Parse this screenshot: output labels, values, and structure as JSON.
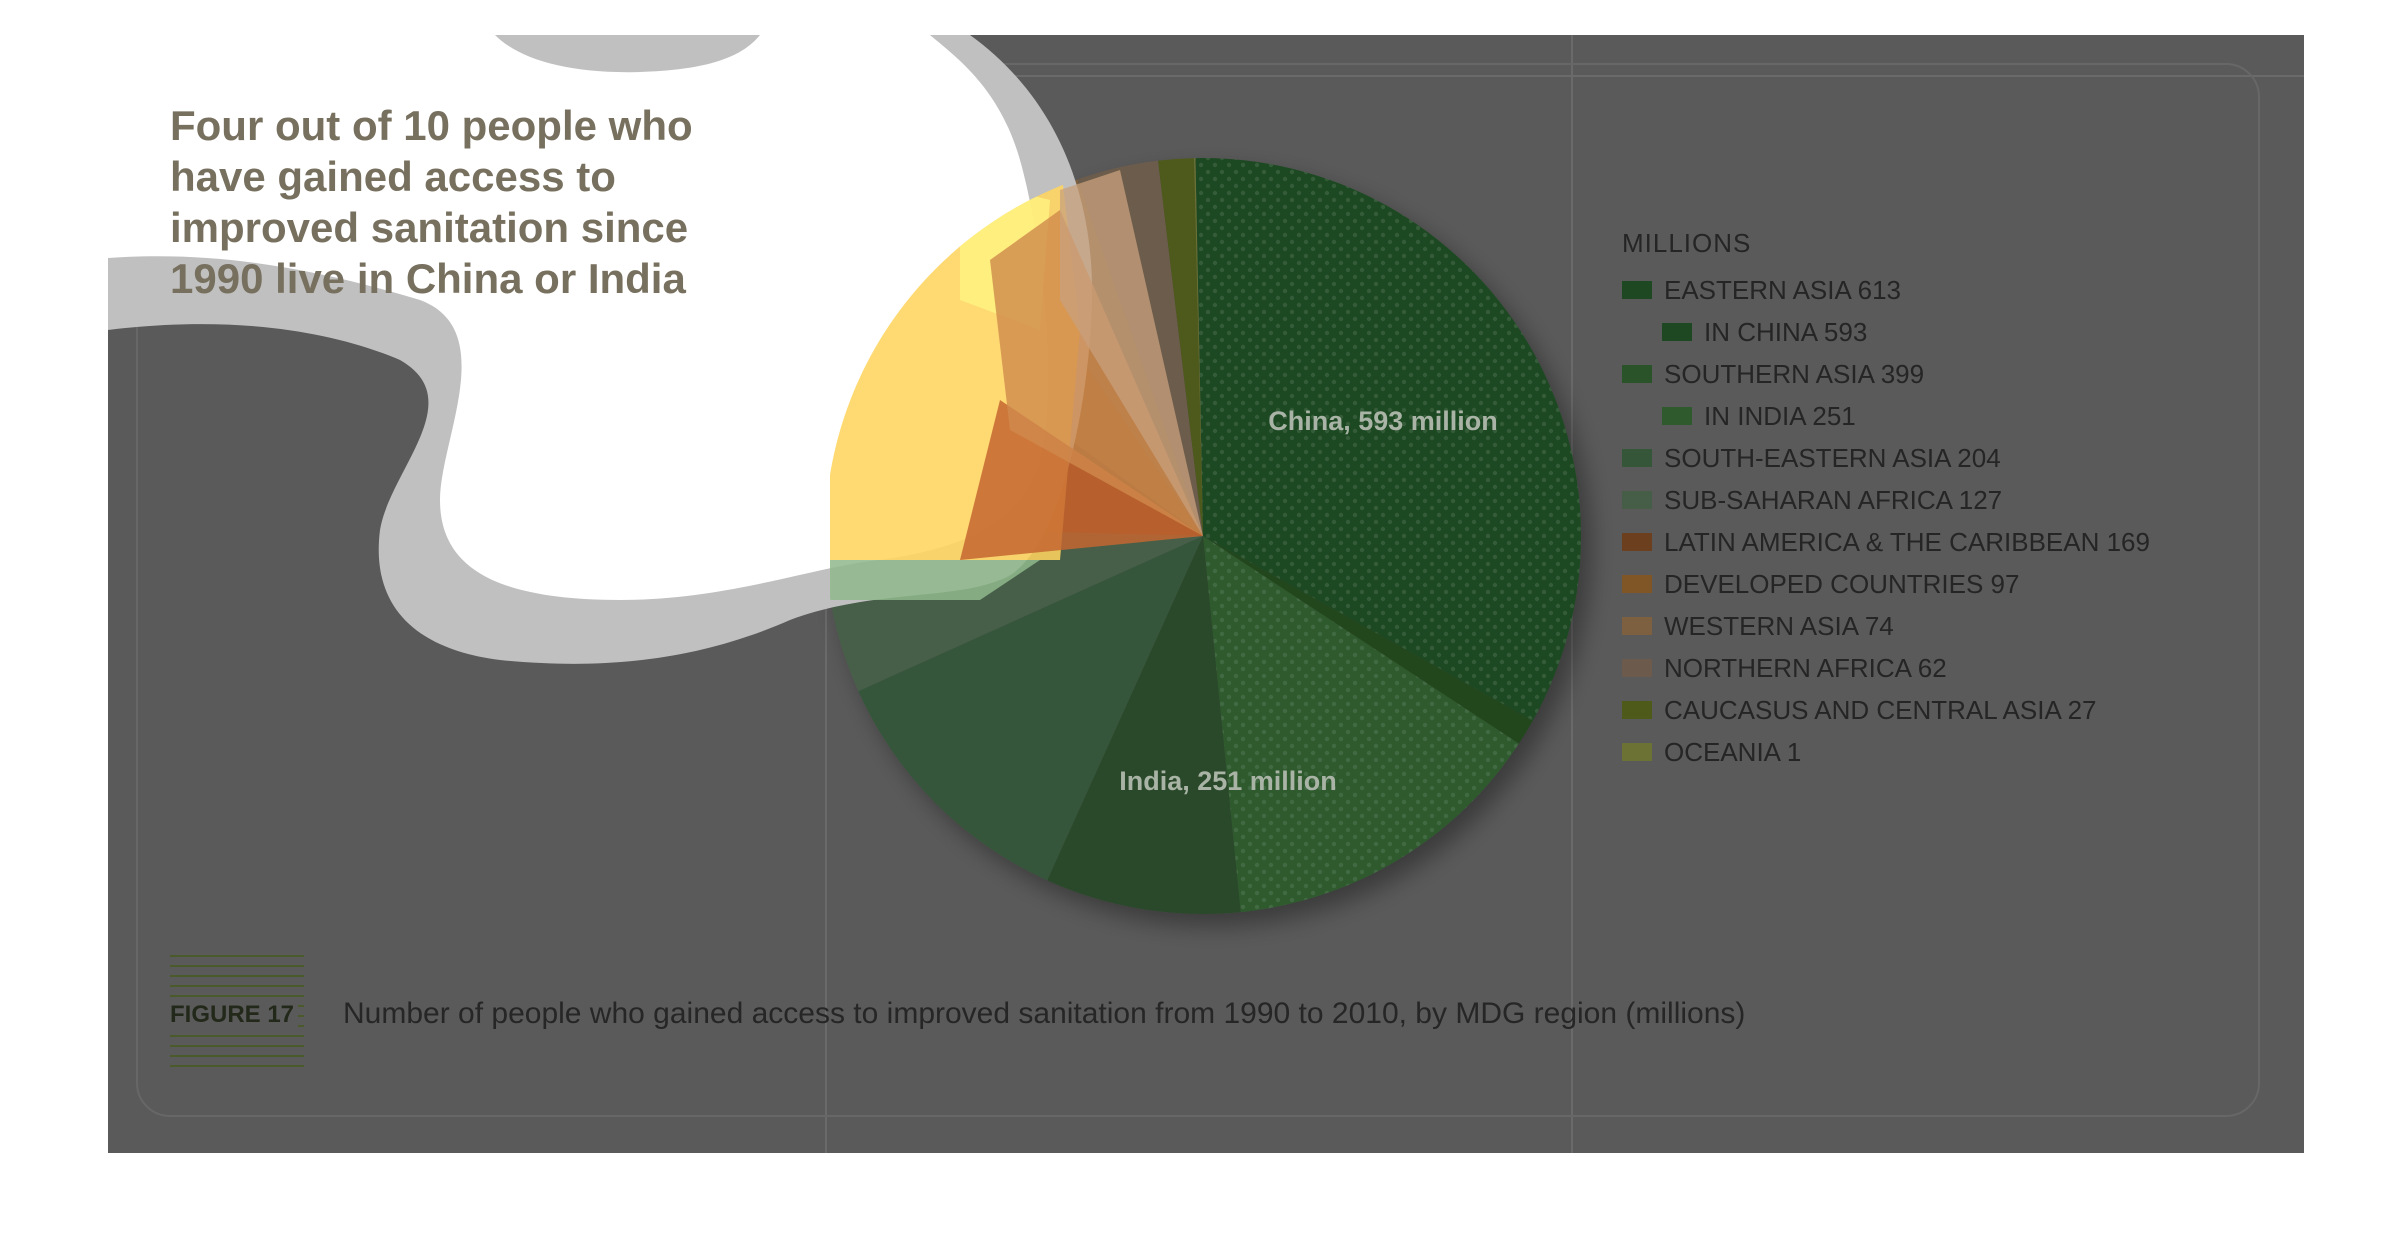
{
  "headline": "Four out of 10 people who\nhave gained access to\nimproved sanitation since\n1990 live in China or India",
  "figure": {
    "label": "FIGURE 17",
    "caption": "Number of people who gained access to improved sanitation from 1990 to 2010, by MDG region (millions)"
  },
  "colors": {
    "background": "#5a5a5a",
    "highlight_blob": "#ffffff",
    "highlight_blob_outline": "#c0c0c0"
  },
  "chart_data": {
    "type": "pie",
    "legend_title": "MILLIONS",
    "legend": [
      {
        "label": "EASTERN ASIA 613",
        "color": "#1e4822",
        "indent": false
      },
      {
        "label": "IN CHINA 593",
        "color": "#1e4822",
        "indent": true
      },
      {
        "label": "SOUTHERN ASIA 399",
        "color": "#2a532a",
        "indent": false
      },
      {
        "label": "IN INDIA 251",
        "color": "#2e5a2e",
        "indent": true
      },
      {
        "label": "SOUTH-EASTERN ASIA 204",
        "color": "#36563a",
        "indent": false
      },
      {
        "label": "SUB-SAHARAN AFRICA 127",
        "color": "#465e48",
        "indent": false
      },
      {
        "label": "LATIN AMERICA & THE CARIBBEAN 169",
        "color": "#6c3f1f",
        "indent": false
      },
      {
        "label": "DEVELOPED COUNTRIES 97",
        "color": "#805626",
        "indent": false
      },
      {
        "label": "WESTERN ASIA 74",
        "color": "#7d6040",
        "indent": false
      },
      {
        "label": "NORTHERN AFRICA 62",
        "color": "#6c5b4c",
        "indent": false
      },
      {
        "label": "CAUCASUS AND CENTRAL ASIA 27",
        "color": "#4e5a1a",
        "indent": false
      },
      {
        "label": "OCEANIA 1",
        "color": "#6c7234",
        "indent": false
      }
    ],
    "slices": [
      {
        "name": "EASTERN ASIA (China)",
        "value": 593,
        "color": "#1e4822",
        "dotted": true
      },
      {
        "name": "EASTERN ASIA (other)",
        "value": 20,
        "color": "#22461f",
        "dotted": false
      },
      {
        "name": "SOUTHERN ASIA (India)",
        "value": 251,
        "color": "#2e5a2e",
        "dotted": true
      },
      {
        "name": "SOUTHERN ASIA (other)",
        "value": 148,
        "color": "#2c482a",
        "dotted": false
      },
      {
        "name": "SOUTH-EASTERN ASIA",
        "value": 204,
        "color": "#36563a",
        "dotted": false
      },
      {
        "name": "SUB-SAHARAN AFRICA",
        "value": 127,
        "color": "#465e48",
        "dotted": false
      },
      {
        "name": "LATIN AMERICA & THE CARIBBEAN",
        "value": 169,
        "color": "#6c3f1f",
        "dotted": false
      },
      {
        "name": "DEVELOPED COUNTRIES",
        "value": 97,
        "color": "#805626",
        "dotted": false
      },
      {
        "name": "WESTERN ASIA",
        "value": 74,
        "color": "#7d6040",
        "dotted": false
      },
      {
        "name": "NORTHERN AFRICA",
        "value": 62,
        "color": "#6c5b4c",
        "dotted": false
      },
      {
        "name": "CAUCASUS AND CENTRAL ASIA",
        "value": 27,
        "color": "#4e5a1a",
        "dotted": false
      },
      {
        "name": "OCEANIA",
        "value": 1,
        "color": "#6c7234",
        "dotted": false
      }
    ],
    "annotations": [
      "China, 593 million",
      "India, 251 million"
    ]
  }
}
